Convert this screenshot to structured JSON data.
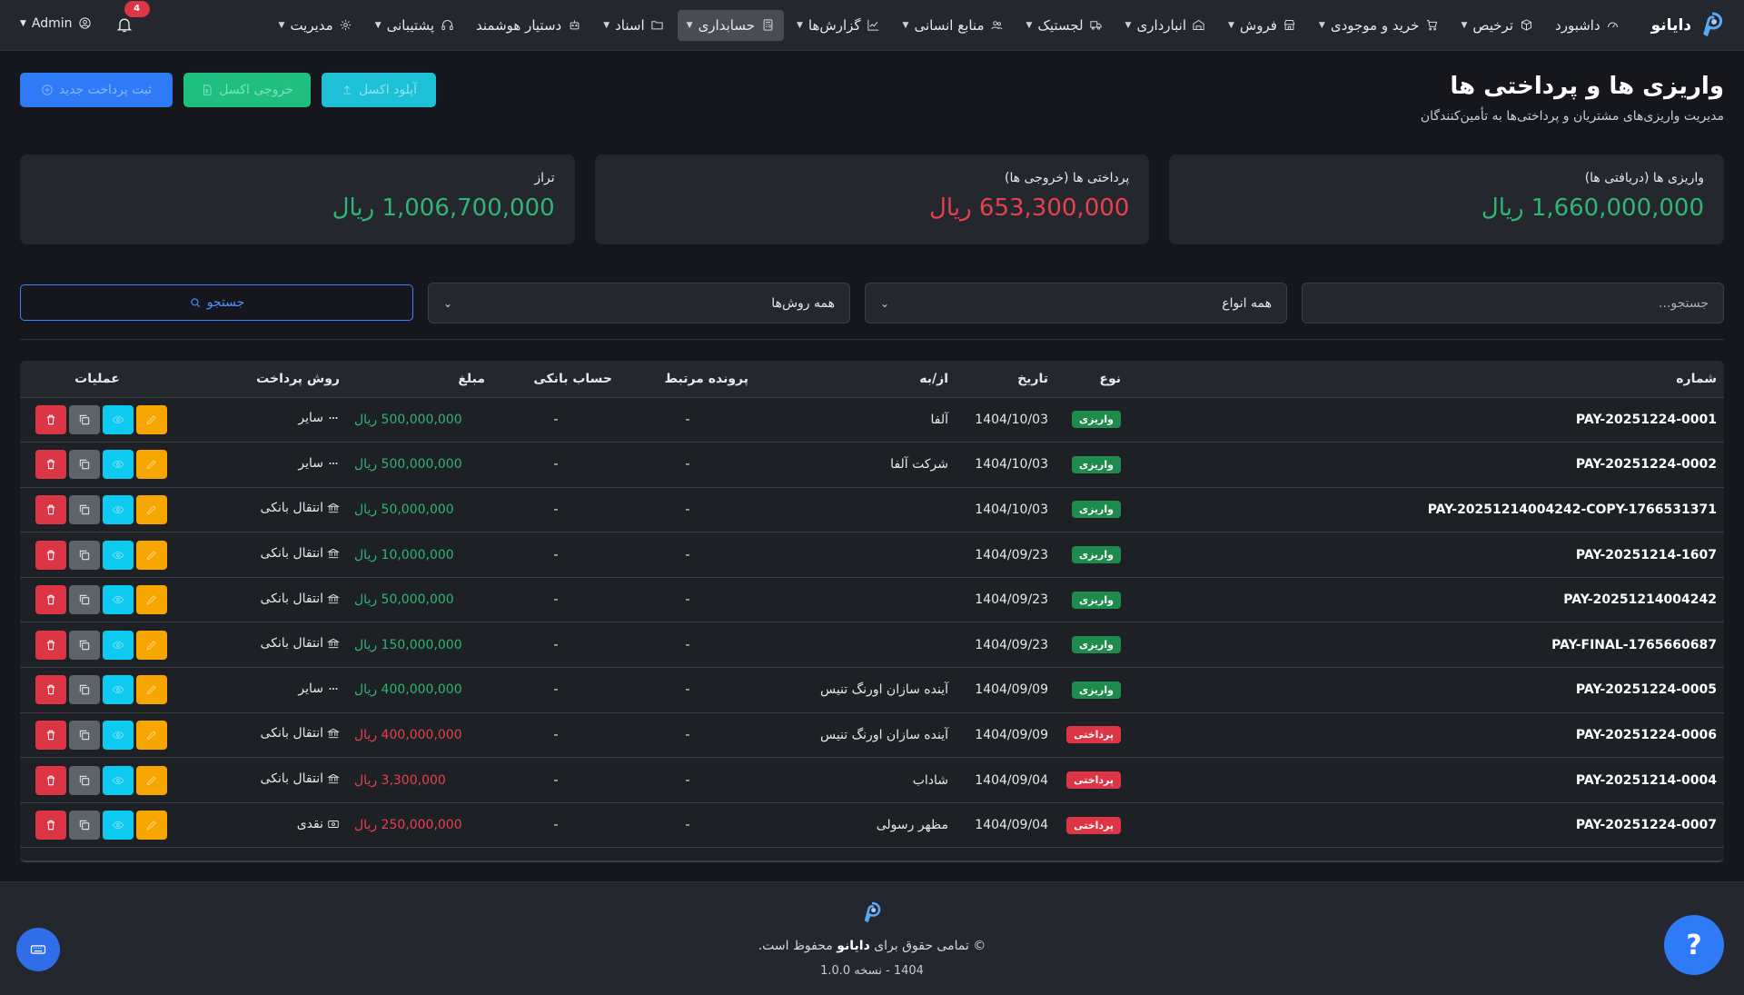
{
  "nav": {
    "brand": "دایانو",
    "items": [
      {
        "label": "داشبورد",
        "icon": "gauge-icon",
        "caret": false
      },
      {
        "label": "ترخیص",
        "icon": "box-icon",
        "caret": true
      },
      {
        "label": "خرید و موجودی",
        "icon": "cart-icon",
        "caret": true
      },
      {
        "label": "فروش",
        "icon": "store-icon",
        "caret": true
      },
      {
        "label": "انبارداری",
        "icon": "warehouse-icon",
        "caret": true
      },
      {
        "label": "لجستیک",
        "icon": "truck-icon",
        "caret": true
      },
      {
        "label": "منابع انسانی",
        "icon": "users-icon",
        "caret": true
      },
      {
        "label": "گزارش‌ها",
        "icon": "chart-icon",
        "caret": true
      },
      {
        "label": "حسابداری",
        "icon": "calculator-icon",
        "caret": true,
        "active": true
      },
      {
        "label": "اسناد",
        "icon": "folder-icon",
        "caret": true
      },
      {
        "label": "دستیار هوشمند",
        "icon": "robot-icon",
        "caret": false
      },
      {
        "label": "پشتیبانی",
        "icon": "headset-icon",
        "caret": true
      },
      {
        "label": "مدیریت",
        "icon": "gear-icon",
        "caret": true
      }
    ],
    "notifications": "4",
    "user": "Admin"
  },
  "header": {
    "title": "واریزی ها و پرداختی ها",
    "subtitle": "مدیریت واریزی‌های مشتریان و پرداختی‌ها به تأمین‌کنندگان",
    "btn_new": "ثبت پرداخت جدید",
    "btn_export": "خروجی اکسل",
    "btn_upload": "آپلود اکسل"
  },
  "cards": [
    {
      "label": "واریزی ها (دریافتی ها)",
      "value": "1,660,000,000 ریال",
      "color": "green"
    },
    {
      "label": "پرداختی ها (خروجی ها)",
      "value": "653,300,000 ریال",
      "color": "red"
    },
    {
      "label": "تراز",
      "value": "1,006,700,000 ریال",
      "color": "green"
    }
  ],
  "filters": {
    "search_placeholder": "جستجو...",
    "type_select": "همه انواع",
    "method_select": "همه روش‌ها",
    "search_button": "جستجو"
  },
  "table": {
    "columns": [
      "شماره",
      "نوع",
      "تاریخ",
      "از/به",
      "پرونده مرتبط",
      "حساب بانکی",
      "مبلغ",
      "روش پرداخت",
      "عملیات"
    ],
    "rows": [
      {
        "num": "PAY-20251224-0001",
        "type": "واریزی",
        "kind": "in",
        "date": "1404/10/03",
        "party": "آلفا",
        "case": "-",
        "bank": "-",
        "amount": "500,000,000 ریال",
        "method": "سایر",
        "method_icon": "dots-icon"
      },
      {
        "num": "PAY-20251224-0002",
        "type": "واریزی",
        "kind": "in",
        "date": "1404/10/03",
        "party": "شرکت آلفا",
        "case": "-",
        "bank": "-",
        "amount": "500,000,000 ریال",
        "method": "سایر",
        "method_icon": "dots-icon"
      },
      {
        "num": "PAY-20251214004242-COPY-1766531371",
        "type": "واریزی",
        "kind": "in",
        "date": "1404/10/03",
        "party": "",
        "case": "-",
        "bank": "-",
        "amount": "50,000,000 ریال",
        "method": "انتقال بانکی",
        "method_icon": "bank-icon"
      },
      {
        "num": "PAY-20251214-1607",
        "type": "واریزی",
        "kind": "in",
        "date": "1404/09/23",
        "party": "",
        "case": "-",
        "bank": "-",
        "amount": "10,000,000 ریال",
        "method": "انتقال بانکی",
        "method_icon": "bank-icon"
      },
      {
        "num": "PAY-20251214004242",
        "type": "واریزی",
        "kind": "in",
        "date": "1404/09/23",
        "party": "",
        "case": "-",
        "bank": "-",
        "amount": "50,000,000 ریال",
        "method": "انتقال بانکی",
        "method_icon": "bank-icon"
      },
      {
        "num": "PAY-FINAL-1765660687",
        "type": "واریزی",
        "kind": "in",
        "date": "1404/09/23",
        "party": "",
        "case": "-",
        "bank": "-",
        "amount": "150,000,000 ریال",
        "method": "انتقال بانکی",
        "method_icon": "bank-icon"
      },
      {
        "num": "PAY-20251224-0005",
        "type": "واریزی",
        "kind": "in",
        "date": "1404/09/09",
        "party": "آینده سازان اورنگ تنیس",
        "case": "-",
        "bank": "-",
        "amount": "400,000,000 ریال",
        "method": "سایر",
        "method_icon": "dots-icon"
      },
      {
        "num": "PAY-20251224-0006",
        "type": "پرداختی",
        "kind": "out",
        "date": "1404/09/09",
        "party": "آینده سازان اورنگ تنیس",
        "case": "-",
        "bank": "-",
        "amount": "400,000,000 ریال",
        "method": "انتقال بانکی",
        "method_icon": "bank-icon"
      },
      {
        "num": "PAY-20251214-0004",
        "type": "پرداختی",
        "kind": "out",
        "date": "1404/09/04",
        "party": "شاداب",
        "case": "-",
        "bank": "-",
        "amount": "3,300,000 ریال",
        "method": "انتقال بانکی",
        "method_icon": "bank-icon"
      },
      {
        "num": "PAY-20251224-0007",
        "type": "پرداختی",
        "kind": "out",
        "date": "1404/09/04",
        "party": "مظهر رسولی",
        "case": "-",
        "bank": "-",
        "amount": "250,000,000 ریال",
        "method": "نقدی",
        "method_icon": "cash-icon"
      }
    ]
  },
  "footer": {
    "rights_prefix": "تمامی حقوق برای",
    "brand": "دایانو",
    "rights_suffix": "محفوظ است.",
    "version": "1404 - نسخه 1.0.0",
    "help": "?"
  },
  "colors": {
    "accent": "#2f7af7",
    "success": "#2fb574",
    "danger": "#e8404f"
  }
}
